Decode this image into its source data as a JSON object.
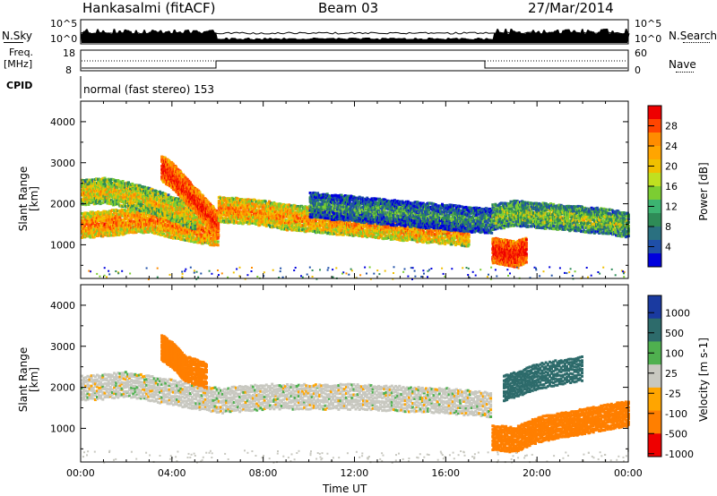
{
  "header": {
    "title": "Hankasalmi (fitACF)",
    "beam": "Beam 03",
    "date": "27/Mar/2014"
  },
  "noise_panel": {
    "left_label": "N.Sky",
    "right_label": "N.Search",
    "left_ticks": [
      "10^5",
      "10^0"
    ],
    "right_ticks": [
      "10^5",
      "10^0"
    ]
  },
  "freq_panel": {
    "left_label_1": "Freq.",
    "left_label_2": "[MHz]",
    "right_label": "Nave",
    "left_ticks": [
      "18",
      "8"
    ],
    "right_ticks": [
      "60",
      "0"
    ]
  },
  "cpid": {
    "label": "CPID",
    "mode": "normal (fast stereo) 153"
  },
  "power_panel": {
    "ylabel": "Slant Range [km]",
    "colorbar_label": "Power [dB]",
    "colorbar_ticks": [
      "28",
      "24",
      "20",
      "16",
      "12",
      "8",
      "4"
    ]
  },
  "velocity_panel": {
    "ylabel": "Slant Range [km]",
    "colorbar_label": "Velocity [m s-1]",
    "colorbar_ticks": [
      "1000",
      "500",
      "100",
      "25",
      "-25",
      "-100",
      "-500",
      "-1000"
    ]
  },
  "xaxis": {
    "label": "Time UT",
    "ticks": [
      "00:00",
      "04:00",
      "08:00",
      "12:00",
      "16:00",
      "20:00",
      "00:00"
    ]
  },
  "chart_data": {
    "type": "heatmap",
    "x_range_hours": [
      0,
      24
    ],
    "y_range_km": [
      180,
      4500
    ],
    "y_ticks_km": [
      1000,
      2000,
      3000,
      4000
    ],
    "power_scale_db": [
      0,
      30
    ],
    "velocity_scale_ms": [
      -1000,
      1000
    ],
    "power_colors": [
      "#0000dd",
      "#1f4fa8",
      "#2e8b57",
      "#7ccd32",
      "#f0c000",
      "#ff8c00",
      "#ff4500",
      "#ee0000"
    ],
    "velocity_colors": [
      "#1a3aa0",
      "#2d6b6b",
      "#4fb04f",
      "#c8c8c0",
      "#ffa500",
      "#ff7f00",
      "#ee0000"
    ],
    "power_series": [
      {
        "x": [
          0,
          1,
          2,
          3,
          4,
          5,
          6
        ],
        "y": [
          1500,
          1550,
          1600,
          1650,
          1500,
          1400,
          1300
        ],
        "value": 22
      },
      {
        "x": [
          0,
          1,
          2,
          3,
          4,
          5
        ],
        "y": [
          2300,
          2350,
          2250,
          2100,
          1900,
          1700
        ],
        "value": 18
      },
      {
        "x": [
          3.5,
          4,
          4.5,
          5,
          5.5,
          6
        ],
        "y": [
          2900,
          2700,
          2400,
          2100,
          1800,
          1500
        ],
        "value": 27
      },
      {
        "x": [
          6,
          7,
          8,
          9,
          10,
          11,
          12,
          13,
          14,
          15,
          16,
          17
        ],
        "y": [
          1900,
          1850,
          1800,
          1700,
          1650,
          1600,
          1550,
          1500,
          1450,
          1400,
          1350,
          1300
        ],
        "value": 21
      },
      {
        "x": [
          10,
          11,
          12,
          13,
          14,
          15,
          16,
          17,
          18
        ],
        "y": [
          2000,
          1950,
          1900,
          1850,
          1800,
          1750,
          1700,
          1650,
          1600
        ],
        "value": 10
      },
      {
        "x": [
          18,
          18.5,
          19,
          19.5
        ],
        "y": [
          900,
          850,
          800,
          900
        ],
        "value": 28
      },
      {
        "x": [
          18,
          19,
          20,
          21,
          22,
          23,
          24
        ],
        "y": [
          1700,
          1800,
          1750,
          1700,
          1650,
          1600,
          1500
        ],
        "value": 14
      }
    ],
    "velocity_series": [
      {
        "x": [
          0,
          2,
          4,
          6,
          8,
          10,
          12,
          14,
          16,
          18
        ],
        "y": [
          2000,
          2100,
          1900,
          1700,
          1800,
          1800,
          1800,
          1750,
          1700,
          1600
        ],
        "value": 0
      },
      {
        "x": [
          3.5,
          4,
          4.5,
          5.5
        ],
        "y": [
          3000,
          2800,
          2500,
          2300
        ],
        "value": -300
      },
      {
        "x": [
          18,
          19,
          20,
          21,
          22,
          23,
          24
        ],
        "y": [
          800,
          750,
          1000,
          1100,
          1200,
          1300,
          1400
        ],
        "value": -400
      },
      {
        "x": [
          18.5,
          20,
          22
        ],
        "y": [
          2000,
          2300,
          2500
        ],
        "value": 150
      }
    ]
  }
}
